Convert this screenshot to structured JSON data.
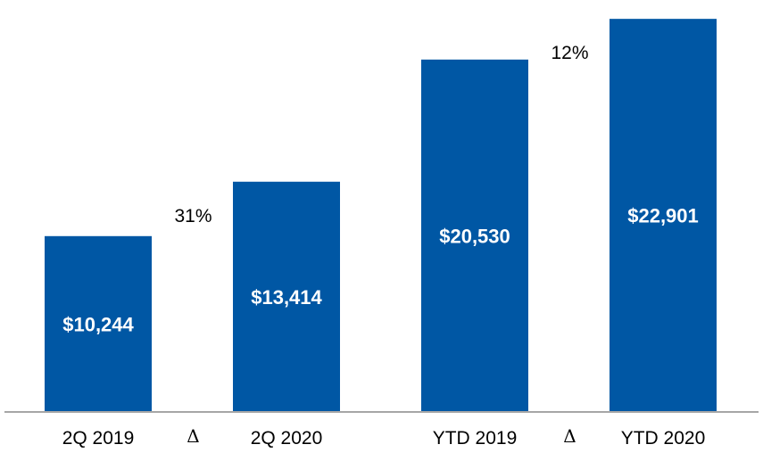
{
  "chart_data": {
    "type": "bar",
    "title": "",
    "xlabel": "",
    "ylabel": "",
    "categories": [
      "2Q 2019",
      "2Q 2020",
      "YTD 2019",
      "YTD 2020"
    ],
    "values": [
      10244,
      13414,
      20530,
      22901
    ],
    "value_labels": [
      "$10,244",
      "$13,414",
      "$20,530",
      "$22,901"
    ],
    "ylim": [
      0,
      24000
    ],
    "grid": false,
    "bar_color": "#0057a4",
    "comparisons": [
      {
        "from": "2Q 2019",
        "to": "2Q 2020",
        "symbol": "Δ",
        "change_label": "31%"
      },
      {
        "from": "YTD 2019",
        "to": "YTD 2020",
        "symbol": "Δ",
        "change_label": "12%"
      }
    ]
  }
}
